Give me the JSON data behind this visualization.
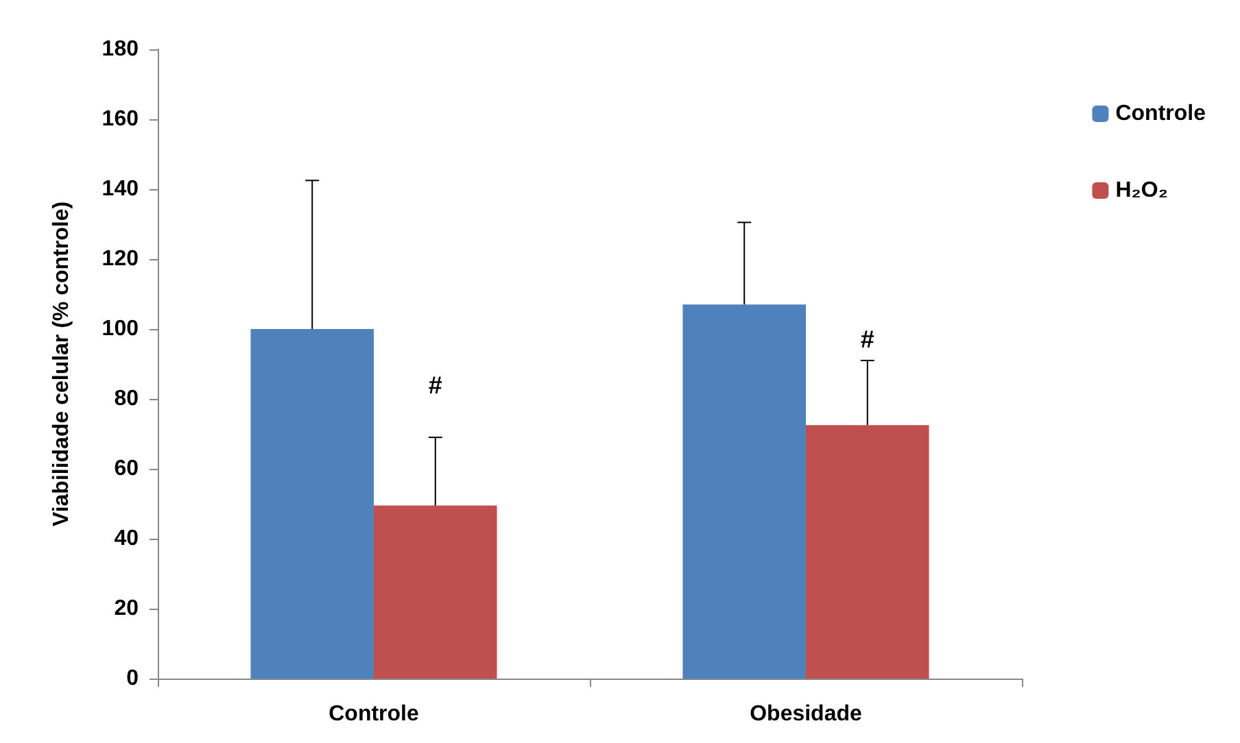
{
  "chart_data": {
    "type": "bar",
    "ylabel": "Viabilidade celular (% controle)",
    "categories": [
      "Controle",
      "Obesidade"
    ],
    "series": [
      {
        "name": "Controle",
        "color": "#4f81bd",
        "values": [
          100,
          107
        ],
        "errors": [
          [
            100,
            142.5
          ],
          [
            107,
            130.5
          ]
        ]
      },
      {
        "name": "H₂O₂",
        "color": "#c0504d",
        "values": [
          49.5,
          72.5
        ],
        "errors": [
          [
            49.5,
            69
          ],
          [
            72.5,
            91
          ]
        ]
      }
    ],
    "ylim": [
      0,
      180
    ],
    "yticks": [
      0,
      20,
      40,
      60,
      80,
      100,
      120,
      140,
      160,
      180
    ],
    "annotations": [
      {
        "text": "#",
        "x": "Controle",
        "y": 84
      },
      {
        "text": "#",
        "x": "Obesidade",
        "y": 97
      }
    ],
    "grid": false,
    "legend": "right"
  }
}
